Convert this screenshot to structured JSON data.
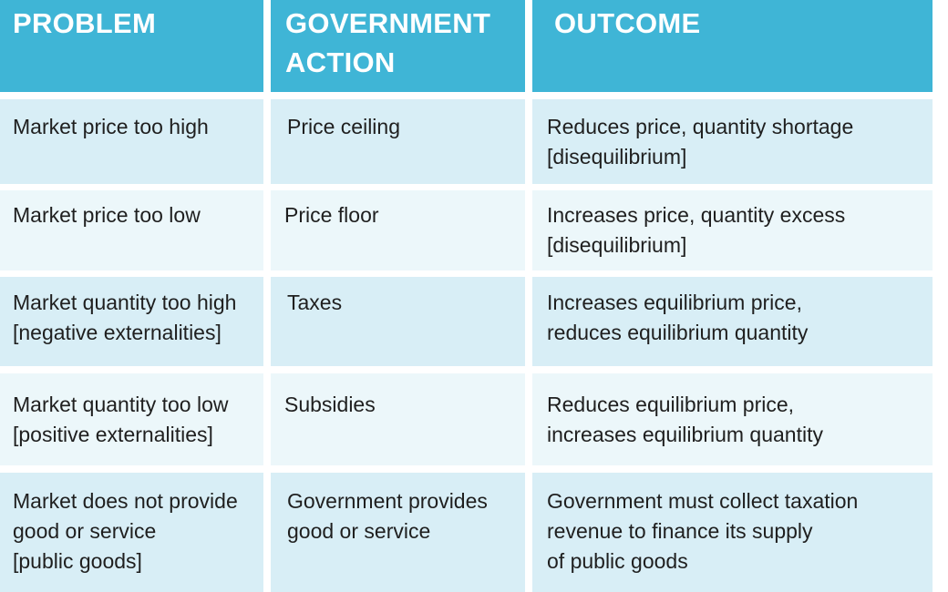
{
  "table": {
    "headers": [
      "PROBLEM",
      "GOVERNMENT\nACTION",
      "OUTCOME"
    ],
    "rows": [
      {
        "problem": "Market price too high",
        "action": "Price ceiling",
        "outcome": "Reduces price, quantity shortage\n[disequilibrium]"
      },
      {
        "problem": "Market price too low",
        "action": "Price floor",
        "outcome": "Increases price, quantity excess\n[disequilibrium]"
      },
      {
        "problem": "Market quantity too high\n[negative externalities]",
        "action": "Taxes",
        "outcome": "Increases equilibrium price,\nreduces equilibrium quantity"
      },
      {
        "problem": "Market quantity too low\n[positive externalities]",
        "action": "Subsidies",
        "outcome": "Reduces equilibrium price,\nincreases equilibrium quantity"
      },
      {
        "problem": "Market does not provide\ngood or service\n[public goods]",
        "action": "Government provides\ngood or service",
        "outcome": "Government must collect taxation\nrevenue to finance its supply\nof public goods"
      }
    ]
  },
  "colors": {
    "header_bg": "#3fb5d6",
    "row_dark": "#d8eef6",
    "row_light": "#ecf7fa",
    "text": "#1f1f1f"
  }
}
